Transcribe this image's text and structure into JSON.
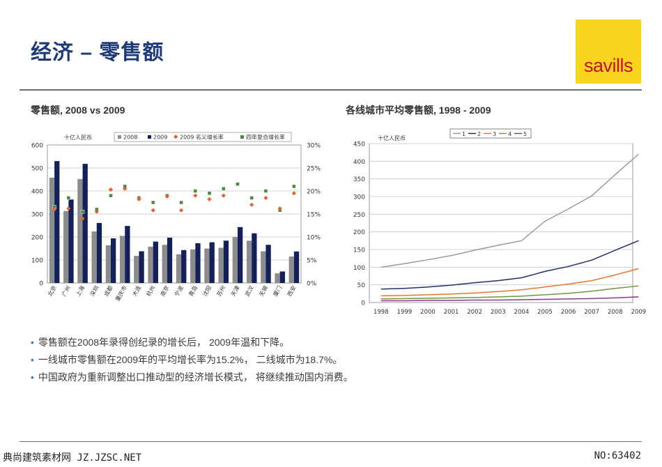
{
  "page_title": "经济 – 零售额",
  "logo_text": "savills",
  "colors": {
    "title": "#1f3a7a",
    "logo_bg": "#f7d51d",
    "logo_text": "#c8102e",
    "bullet": "#3a7bbf"
  },
  "bullets": [
    "零售额在2008年录得创纪录的增长后， 2009年温和下降。",
    "一线城市零售额在2009年的平均增长率为15.2%， 二线城市为18.7%。",
    "中国政府为重新调整出口推动型的经济增长模式， 将继续推动国内消费。"
  ],
  "footer": {
    "left": "典尚建筑素材网 JZ.JZSC.NET",
    "right": "NO:63402"
  },
  "chart_data": [
    {
      "type": "bar",
      "title": "零售额, 2008 vs 2009",
      "unit_label": "十亿人民币",
      "categories": [
        "北京",
        "广州",
        "上海",
        "深圳",
        "成都",
        "重庆市",
        "大连",
        "杭州",
        "南京",
        "宁波",
        "青岛",
        "沈阳",
        "苏州",
        "天津",
        "武汉",
        "无锡",
        "厦门",
        "西安"
      ],
      "ylim": [
        0,
        600
      ],
      "yticks": [
        "0",
        "100",
        "200",
        "300",
        "400",
        "500",
        "600"
      ],
      "y2lim": [
        0,
        30
      ],
      "y2ticks": [
        "0%",
        "5%",
        "10%",
        "15%",
        "20%",
        "25%",
        "30%"
      ],
      "legend_position": "top",
      "series": [
        {
          "name": "2008",
          "kind": "bar",
          "color": "#8c8c8c",
          "values": [
            458,
            313,
            452,
            224,
            164,
            205,
            118,
            158,
            166,
            125,
            146,
            150,
            153,
            200,
            184,
            138,
            42,
            115
          ]
        },
        {
          "name": "2009",
          "kind": "bar",
          "color": "#14205a",
          "values": [
            530,
            363,
            518,
            261,
            194,
            248,
            138,
            180,
            197,
            143,
            173,
            177,
            184,
            243,
            216,
            166,
            50,
            137
          ]
        },
        {
          "name": "2009 名义增长率",
          "kind": "marker",
          "axis": "right",
          "color": "#e8612c",
          "values": [
            16.0,
            16.2,
            14.0,
            15.5,
            20.3,
            20.5,
            18.2,
            15.8,
            18.8,
            15.8,
            19.0,
            18.2,
            19.0,
            null,
            17.0,
            18.5,
            16.2,
            19.5
          ]
        },
        {
          "name": "四年复合增长率",
          "kind": "marker",
          "axis": "right",
          "color": "#4a8a3a",
          "values": [
            16.5,
            18.5,
            15.5,
            16.0,
            19.0,
            21.0,
            18.5,
            17.5,
            19.0,
            17.5,
            20.0,
            19.5,
            20.5,
            21.5,
            18.5,
            20.0,
            15.8,
            21.0
          ]
        }
      ]
    },
    {
      "type": "line",
      "title": "各线城市平均零售额, 1998 - 2009",
      "unit_label": "十亿人民币",
      "x": [
        "1998",
        "1999",
        "2000",
        "2001",
        "2002",
        "2003",
        "2004",
        "2005",
        "2006",
        "2007",
        "2008",
        "2009"
      ],
      "ylim": [
        0,
        450
      ],
      "yticks": [
        "0",
        "50",
        "100",
        "150",
        "200",
        "250",
        "300",
        "350",
        "400",
        "450"
      ],
      "legend_position": "top",
      "series": [
        {
          "name": "1",
          "color": "#9a9a9a",
          "values": [
            100,
            110,
            121,
            133,
            148,
            162,
            175,
            230,
            265,
            302,
            362,
            420
          ]
        },
        {
          "name": "2",
          "color": "#1f2f6a",
          "values": [
            38,
            40,
            44,
            49,
            56,
            62,
            70,
            88,
            102,
            120,
            148,
            175
          ]
        },
        {
          "name": "3",
          "color": "#e8762c",
          "values": [
            19,
            20,
            22,
            24,
            27,
            31,
            36,
            44,
            52,
            62,
            78,
            96
          ]
        },
        {
          "name": "4",
          "color": "#6a9a3a",
          "values": [
            10,
            11,
            12,
            13,
            14,
            16,
            18,
            22,
            26,
            32,
            40,
            47
          ]
        },
        {
          "name": "5",
          "color": "#8a3a8a",
          "values": [
            5,
            5,
            6,
            6,
            7,
            7,
            8,
            9,
            10,
            11,
            13,
            16
          ]
        }
      ]
    }
  ]
}
